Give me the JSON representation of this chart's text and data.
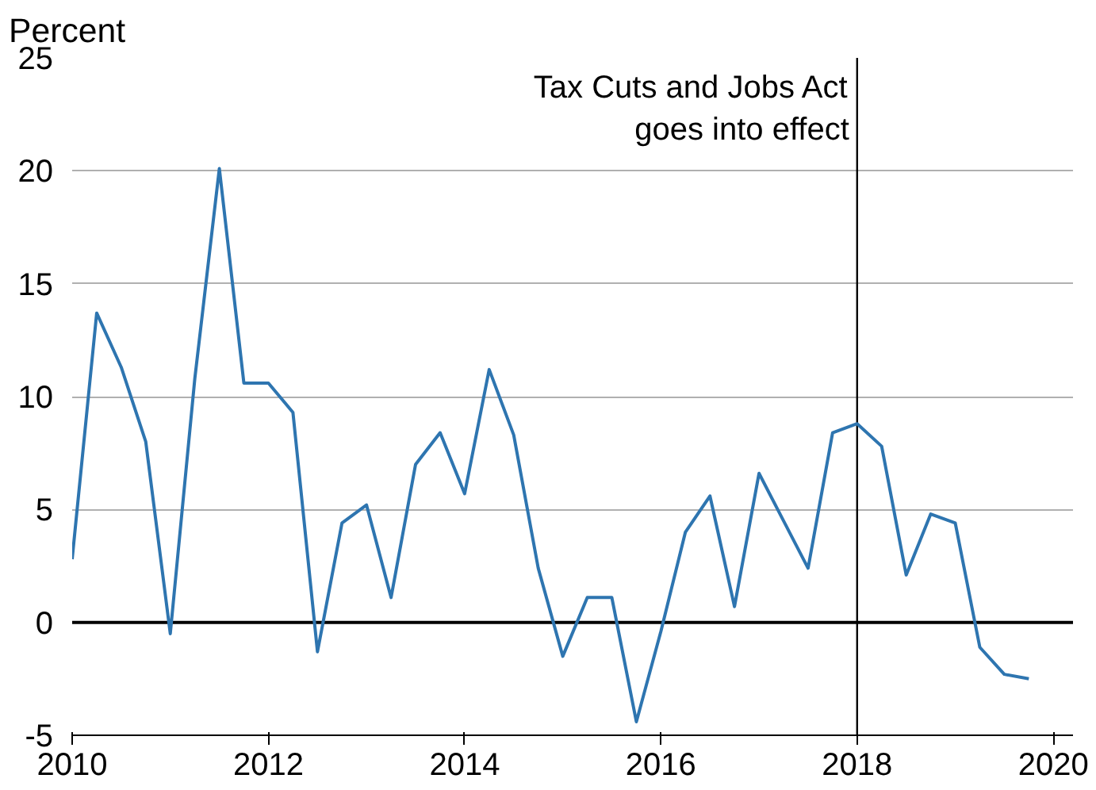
{
  "chart_data": {
    "type": "line",
    "ylabel": "Percent",
    "x": [
      2010,
      2010.25,
      2010.5,
      2010.75,
      2011,
      2011.25,
      2011.5,
      2011.75,
      2012,
      2012.25,
      2012.5,
      2012.75,
      2013,
      2013.25,
      2013.5,
      2013.75,
      2014,
      2014.25,
      2014.5,
      2014.75,
      2015,
      2015.25,
      2015.5,
      2015.75,
      2016,
      2016.25,
      2016.5,
      2016.75,
      2017,
      2017.25,
      2017.5,
      2017.75,
      2018,
      2018.25,
      2018.5,
      2018.75,
      2019,
      2019.25,
      2019.5,
      2019.75
    ],
    "series": [
      {
        "color": "#2e75b0",
        "values": [
          2.8,
          13.7,
          11.3,
          8,
          -0.5,
          10.8,
          20.1,
          10.6,
          10.6,
          9.3,
          -1.3,
          4.4,
          5.2,
          1.1,
          7,
          8.4,
          5.7,
          11.2,
          8.3,
          2.4,
          -1.5,
          1.1,
          1.1,
          -4.4,
          -0.4,
          4,
          5.6,
          0.7,
          6.6,
          4.5,
          2.4,
          8.4,
          8.8,
          7.8,
          2.1,
          4.8,
          4.4,
          -1.1,
          -2.3,
          -2.5
        ]
      }
    ],
    "xlim": [
      2010,
      2020.2
    ],
    "xticks": [
      2010,
      2012,
      2014,
      2016,
      2018,
      2020
    ],
    "ylim": [
      -5,
      25
    ],
    "yticks": [
      -5,
      0,
      5,
      10,
      15,
      20,
      25
    ],
    "grid": "y",
    "ref_lines": [
      {
        "axis": "y",
        "value": 0,
        "color": "#000000"
      },
      {
        "axis": "x",
        "value": 2018,
        "color": "#000000",
        "label": "Tax Cuts and Jobs Act goes into effect"
      }
    ]
  }
}
